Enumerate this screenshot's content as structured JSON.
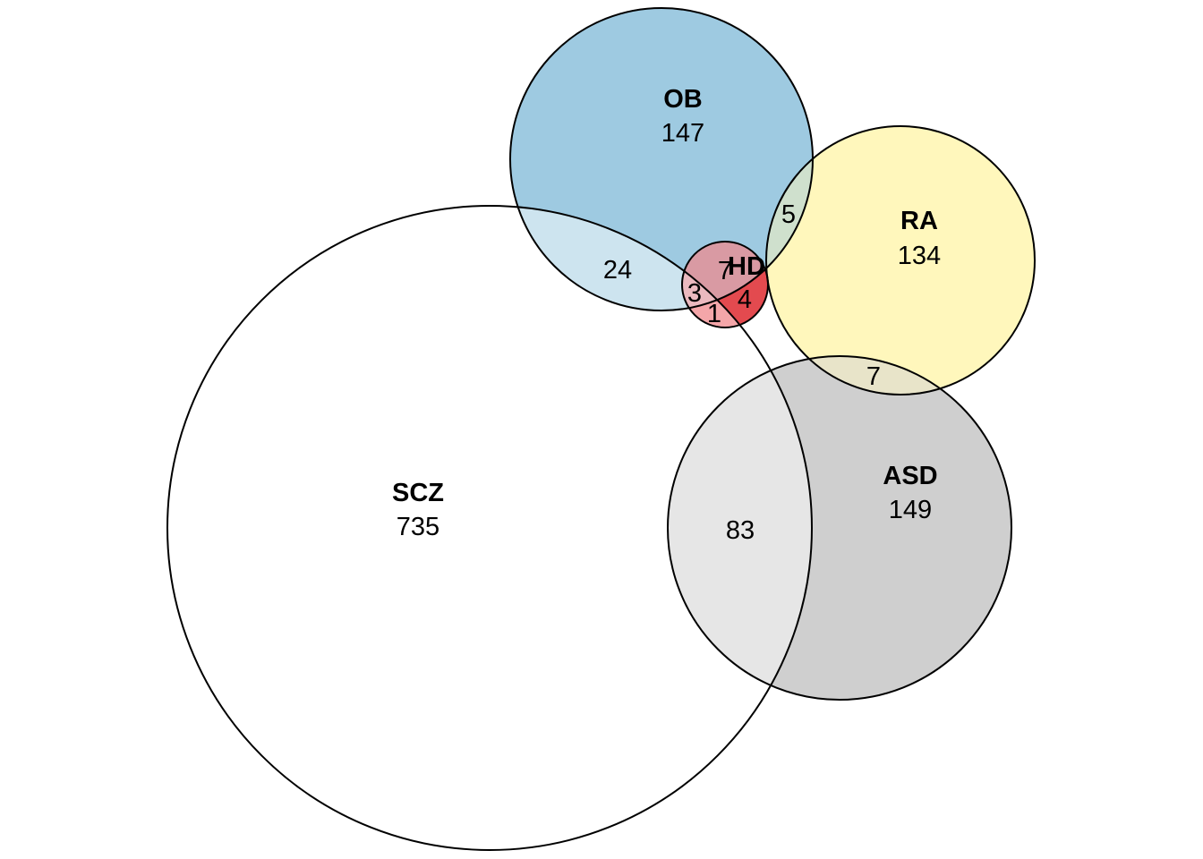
{
  "sets": [
    {
      "id": "SCZ",
      "name": "SCZ",
      "count": "735",
      "color": "#ffffff"
    },
    {
      "id": "OB",
      "name": "OB",
      "count": "147",
      "color": "#9ecae1"
    },
    {
      "id": "RA",
      "name": "RA",
      "count": "134",
      "color": "#fff7bc"
    },
    {
      "id": "ASD",
      "name": "ASD",
      "count": "149",
      "color": "#cfcfcf"
    },
    {
      "id": "HD",
      "name": "HD",
      "count": "7",
      "color": "#e34a4f"
    }
  ],
  "intersections": [
    {
      "sets": [
        "SCZ",
        "OB"
      ],
      "count": "24",
      "color": "#cde4ef"
    },
    {
      "sets": [
        "OB",
        "RA"
      ],
      "count": "5",
      "color": "#cfe0cd"
    },
    {
      "sets": [
        "RA",
        "ASD"
      ],
      "count": "7",
      "color": "#e8e4c9"
    },
    {
      "sets": [
        "SCZ",
        "ASD"
      ],
      "count": "83",
      "color": "#e6e6e6"
    },
    {
      "sets": [
        "SCZ",
        "OB",
        "HD"
      ],
      "count": "3",
      "color": "#ebb9bf"
    },
    {
      "sets": [
        "SCZ",
        "HD"
      ],
      "count": "1",
      "color": "#f4a6a9"
    },
    {
      "sets": [
        "OB",
        "HD"
      ],
      "count": "4",
      "color": "#d99aa3"
    }
  ]
}
